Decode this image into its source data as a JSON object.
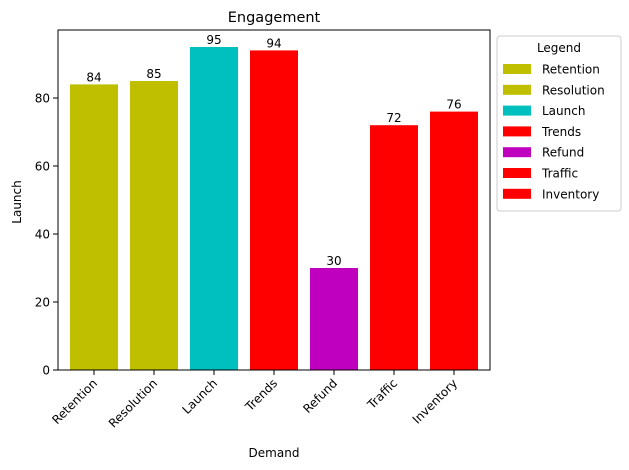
{
  "chart_data": {
    "type": "bar",
    "title": "Engagement",
    "xlabel": "Demand",
    "ylabel": "Launch",
    "categories": [
      "Retention",
      "Resolution",
      "Launch",
      "Trends",
      "Refund",
      "Traffic",
      "Inventory"
    ],
    "values": [
      84,
      85,
      95,
      94,
      30,
      72,
      76
    ],
    "colors": [
      "#bfbf00",
      "#bfbf00",
      "#00bfbf",
      "#ff0000",
      "#bf00bf",
      "#ff0000",
      "#ff0000"
    ],
    "ylim": [
      0,
      100
    ],
    "yticks": [
      0,
      20,
      40,
      60,
      80
    ],
    "grid": false,
    "data_labels": true,
    "legend": {
      "title": "Legend",
      "placement": "outside-right-top",
      "entries": [
        {
          "label": "Retention",
          "color": "#bfbf00"
        },
        {
          "label": "Resolution",
          "color": "#bfbf00"
        },
        {
          "label": "Launch",
          "color": "#00bfbf"
        },
        {
          "label": "Trends",
          "color": "#ff0000"
        },
        {
          "label": "Refund",
          "color": "#bf00bf"
        },
        {
          "label": "Traffic",
          "color": "#ff0000"
        },
        {
          "label": "Inventory",
          "color": "#ff0000"
        }
      ]
    }
  }
}
